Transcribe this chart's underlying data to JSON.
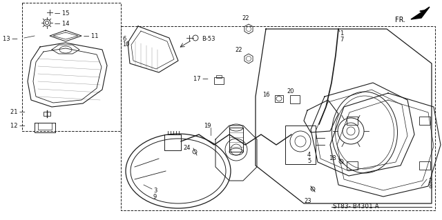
{
  "bg_color": "#ffffff",
  "line_color": "#1a1a1a",
  "fig_width": 6.4,
  "fig_height": 3.19,
  "dpi": 100,
  "part_number": "ST83- B4301 A"
}
